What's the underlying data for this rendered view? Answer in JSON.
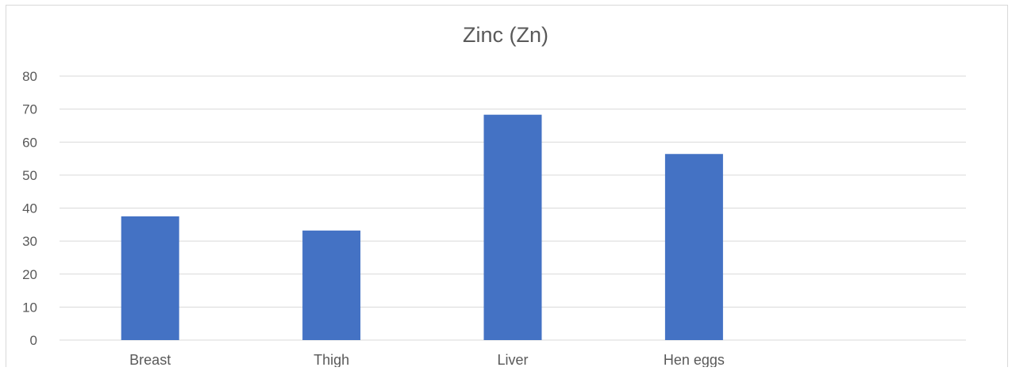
{
  "chart_data": {
    "type": "bar",
    "title": "Zinc (Zn)",
    "xlabel": "",
    "ylabel": "",
    "categories": [
      "Breast",
      "Thigh",
      "Liver",
      "Hen eggs",
      ""
    ],
    "values": [
      37.5,
      33.2,
      68.3,
      56.4,
      null
    ],
    "ylim": [
      0,
      80
    ],
    "yticks": [
      0,
      10,
      20,
      30,
      40,
      50,
      60,
      70,
      80
    ],
    "grid": true,
    "legend": "none",
    "colors": {
      "bar": "#4472C4",
      "grid": "#D9D9D9",
      "text": "#595959",
      "border": "#D9D9D9"
    }
  }
}
